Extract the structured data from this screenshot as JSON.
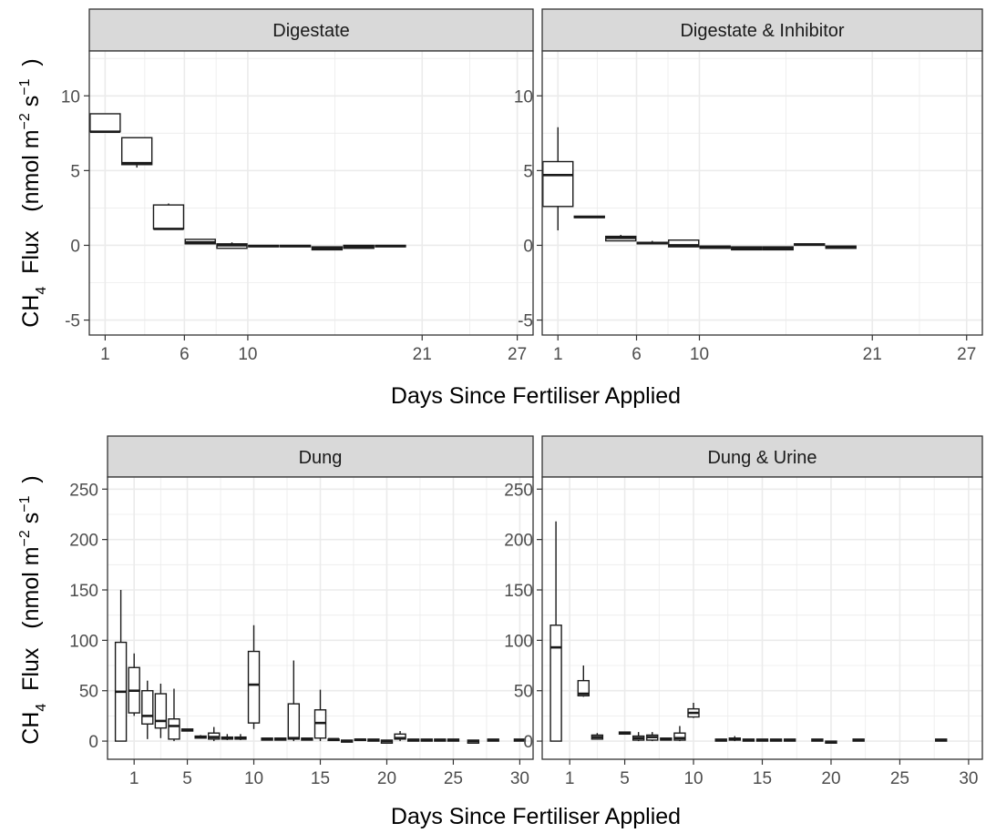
{
  "chart_data": [
    {
      "type": "boxplot",
      "panel": "top-left",
      "title": "Digestate",
      "xlabel": "Days Since Fertiliser Applied",
      "xlim": [
        0,
        28
      ],
      "x_ticks": [
        1,
        6,
        10,
        21,
        27
      ],
      "ylim": [
        -6,
        13
      ],
      "y_ticks": [
        -5,
        0,
        5,
        10
      ],
      "grid": true,
      "boxes": [
        {
          "x": 1,
          "lower_whisker": 7.6,
          "q1": 7.6,
          "median": 7.6,
          "q3": 8.8,
          "upper_whisker": 8.8
        },
        {
          "x": 3,
          "lower_whisker": 5.2,
          "q1": 5.4,
          "median": 5.5,
          "q3": 7.2,
          "upper_whisker": 7.2
        },
        {
          "x": 5,
          "lower_whisker": 1.1,
          "q1": 1.1,
          "median": 1.1,
          "q3": 2.7,
          "upper_whisker": 2.8
        },
        {
          "x": 7,
          "lower_whisker": 0.1,
          "q1": 0.1,
          "median": 0.2,
          "q3": 0.4,
          "upper_whisker": 0.4
        },
        {
          "x": 9,
          "lower_whisker": -0.2,
          "q1": -0.2,
          "median": 0.0,
          "q3": 0.1,
          "upper_whisker": 0.2
        },
        {
          "x": 11,
          "lower_whisker": -0.1,
          "q1": -0.1,
          "median": -0.05,
          "q3": 0.0,
          "upper_whisker": 0.0
        },
        {
          "x": 13,
          "lower_whisker": -0.1,
          "q1": -0.1,
          "median": -0.05,
          "q3": 0.0,
          "upper_whisker": 0.0
        },
        {
          "x": 15,
          "lower_whisker": -0.3,
          "q1": -0.3,
          "median": -0.2,
          "q3": -0.1,
          "upper_whisker": -0.1
        },
        {
          "x": 17,
          "lower_whisker": -0.2,
          "q1": -0.2,
          "median": -0.1,
          "q3": 0.0,
          "upper_whisker": 0.0
        },
        {
          "x": 19,
          "lower_whisker": -0.1,
          "q1": -0.1,
          "median": -0.05,
          "q3": 0.0,
          "upper_whisker": 0.0
        }
      ]
    },
    {
      "type": "boxplot",
      "panel": "top-right",
      "title": "Digestate & Inhibitor",
      "xlabel": "Days Since Fertiliser Applied",
      "xlim": [
        0,
        28
      ],
      "x_ticks": [
        1,
        6,
        10,
        21,
        27
      ],
      "ylim": [
        -6,
        13
      ],
      "y_ticks": [
        -5,
        0,
        5,
        10
      ],
      "grid": true,
      "boxes": [
        {
          "x": 1,
          "lower_whisker": 1.0,
          "q1": 2.6,
          "median": 4.7,
          "q3": 5.6,
          "upper_whisker": 7.9
        },
        {
          "x": 3,
          "lower_whisker": 1.85,
          "q1": 1.85,
          "median": 1.9,
          "q3": 1.95,
          "upper_whisker": 1.95
        },
        {
          "x": 5,
          "lower_whisker": 0.3,
          "q1": 0.3,
          "median": 0.5,
          "q3": 0.6,
          "upper_whisker": 0.7
        },
        {
          "x": 7,
          "lower_whisker": 0.1,
          "q1": 0.1,
          "median": 0.15,
          "q3": 0.2,
          "upper_whisker": 0.3
        },
        {
          "x": 9,
          "lower_whisker": -0.1,
          "q1": -0.1,
          "median": 0.0,
          "q3": 0.35,
          "upper_whisker": 0.35
        },
        {
          "x": 11,
          "lower_whisker": -0.2,
          "q1": -0.2,
          "median": -0.1,
          "q3": -0.05,
          "upper_whisker": -0.05
        },
        {
          "x": 13,
          "lower_whisker": -0.3,
          "q1": -0.3,
          "median": -0.2,
          "q3": -0.1,
          "upper_whisker": -0.1
        },
        {
          "x": 15,
          "lower_whisker": -0.3,
          "q1": -0.3,
          "median": -0.2,
          "q3": -0.1,
          "upper_whisker": -0.1
        },
        {
          "x": 17,
          "lower_whisker": 0.0,
          "q1": 0.0,
          "median": 0.05,
          "q3": 0.1,
          "upper_whisker": 0.1
        },
        {
          "x": 19,
          "lower_whisker": -0.2,
          "q1": -0.2,
          "median": -0.1,
          "q3": -0.05,
          "upper_whisker": -0.05
        }
      ]
    },
    {
      "type": "boxplot",
      "panel": "bottom-left",
      "title": "Dung",
      "xlabel": "Days Since Fertiliser Applied",
      "xlim": [
        -1,
        31
      ],
      "x_ticks": [
        1,
        5,
        10,
        15,
        20,
        25,
        30
      ],
      "ylim": [
        -18,
        262
      ],
      "y_ticks": [
        0,
        50,
        100,
        150,
        200,
        250
      ],
      "grid": true,
      "boxes": [
        {
          "x": 0,
          "lower_whisker": 0,
          "q1": 0,
          "median": 49,
          "q3": 98,
          "upper_whisker": 150
        },
        {
          "x": 1,
          "lower_whisker": 25,
          "q1": 28,
          "median": 50,
          "q3": 73,
          "upper_whisker": 87
        },
        {
          "x": 2,
          "lower_whisker": 2,
          "q1": 17,
          "median": 25,
          "q3": 50,
          "upper_whisker": 60
        },
        {
          "x": 3,
          "lower_whisker": 3,
          "q1": 13,
          "median": 20,
          "q3": 47,
          "upper_whisker": 57
        },
        {
          "x": 4,
          "lower_whisker": 0,
          "q1": 2,
          "median": 15,
          "q3": 22,
          "upper_whisker": 52
        },
        {
          "x": 5,
          "lower_whisker": 10,
          "q1": 10,
          "median": 11,
          "q3": 12,
          "upper_whisker": 12
        },
        {
          "x": 6,
          "lower_whisker": 3,
          "q1": 3,
          "median": 4,
          "q3": 5,
          "upper_whisker": 6
        },
        {
          "x": 7,
          "lower_whisker": 0,
          "q1": 2,
          "median": 4,
          "q3": 8,
          "upper_whisker": 14
        },
        {
          "x": 8,
          "lower_whisker": 1,
          "q1": 2,
          "median": 3,
          "q3": 4,
          "upper_whisker": 7
        },
        {
          "x": 9,
          "lower_whisker": 1,
          "q1": 2,
          "median": 3,
          "q3": 4,
          "upper_whisker": 7
        },
        {
          "x": 10,
          "lower_whisker": 12,
          "q1": 18,
          "median": 56,
          "q3": 89,
          "upper_whisker": 115
        },
        {
          "x": 11,
          "lower_whisker": 1,
          "q1": 1,
          "median": 2,
          "q3": 3,
          "upper_whisker": 3
        },
        {
          "x": 12,
          "lower_whisker": 1,
          "q1": 1,
          "median": 2,
          "q3": 3,
          "upper_whisker": 3
        },
        {
          "x": 13,
          "lower_whisker": 0,
          "q1": 2,
          "median": 3,
          "q3": 37,
          "upper_whisker": 80
        },
        {
          "x": 14,
          "lower_whisker": 1,
          "q1": 1,
          "median": 2,
          "q3": 3,
          "upper_whisker": 3
        },
        {
          "x": 15,
          "lower_whisker": 0,
          "q1": 3,
          "median": 18,
          "q3": 31,
          "upper_whisker": 51
        },
        {
          "x": 16,
          "lower_whisker": 1,
          "q1": 1,
          "median": 2,
          "q3": 2,
          "upper_whisker": 2
        },
        {
          "x": 17,
          "lower_whisker": -1,
          "q1": -1,
          "median": 0,
          "q3": 1,
          "upper_whisker": 1
        },
        {
          "x": 18,
          "lower_whisker": 1,
          "q1": 1,
          "median": 1.5,
          "q3": 2,
          "upper_whisker": 2
        },
        {
          "x": 19,
          "lower_whisker": 0,
          "q1": 0,
          "median": 1,
          "q3": 2,
          "upper_whisker": 2
        },
        {
          "x": 20,
          "lower_whisker": -2,
          "q1": -2,
          "median": 0,
          "q3": 1,
          "upper_whisker": 1
        },
        {
          "x": 21,
          "lower_whisker": 0,
          "q1": 2,
          "median": 3,
          "q3": 7,
          "upper_whisker": 10
        },
        {
          "x": 22,
          "lower_whisker": 0,
          "q1": 0,
          "median": 1,
          "q3": 2,
          "upper_whisker": 2
        },
        {
          "x": 23,
          "lower_whisker": 0,
          "q1": 0,
          "median": 1,
          "q3": 2,
          "upper_whisker": 2
        },
        {
          "x": 24,
          "lower_whisker": 0,
          "q1": 0,
          "median": 1,
          "q3": 2,
          "upper_whisker": 2
        },
        {
          "x": 25,
          "lower_whisker": 0,
          "q1": 0,
          "median": 1,
          "q3": 2,
          "upper_whisker": 2
        },
        {
          "x": 26.5,
          "lower_whisker": -2,
          "q1": -2,
          "median": 0,
          "q3": 1,
          "upper_whisker": 1
        },
        {
          "x": 28,
          "lower_whisker": 0,
          "q1": 0,
          "median": 1,
          "q3": 2,
          "upper_whisker": 2
        },
        {
          "x": 30,
          "lower_whisker": 0,
          "q1": 0,
          "median": 1,
          "q3": 2,
          "upper_whisker": 2
        }
      ]
    },
    {
      "type": "boxplot",
      "panel": "bottom-right",
      "title": "Dung & Urine",
      "xlabel": "Days Since Fertiliser Applied",
      "xlim": [
        -1,
        31
      ],
      "x_ticks": [
        1,
        5,
        10,
        15,
        20,
        25,
        30
      ],
      "ylim": [
        -18,
        262
      ],
      "y_ticks": [
        0,
        50,
        100,
        150,
        200,
        250
      ],
      "grid": true,
      "boxes": [
        {
          "x": 0,
          "lower_whisker": 0,
          "q1": 0,
          "median": 93,
          "q3": 115,
          "upper_whisker": 218
        },
        {
          "x": 2,
          "lower_whisker": 44,
          "q1": 45,
          "median": 47,
          "q3": 60,
          "upper_whisker": 75
        },
        {
          "x": 3,
          "lower_whisker": 2,
          "q1": 2,
          "median": 4,
          "q3": 6,
          "upper_whisker": 8
        },
        {
          "x": 5,
          "lower_whisker": 7,
          "q1": 7,
          "median": 8,
          "q3": 9,
          "upper_whisker": 9
        },
        {
          "x": 6,
          "lower_whisker": 0,
          "q1": 1,
          "median": 3,
          "q3": 5,
          "upper_whisker": 9
        },
        {
          "x": 7,
          "lower_whisker": 0,
          "q1": 1,
          "median": 4,
          "q3": 6,
          "upper_whisker": 9
        },
        {
          "x": 8,
          "lower_whisker": 1,
          "q1": 1,
          "median": 2,
          "q3": 3,
          "upper_whisker": 3
        },
        {
          "x": 9,
          "lower_whisker": 0,
          "q1": 1,
          "median": 3,
          "q3": 8,
          "upper_whisker": 15
        },
        {
          "x": 10,
          "lower_whisker": 23,
          "q1": 24,
          "median": 28,
          "q3": 32,
          "upper_whisker": 38
        },
        {
          "x": 12,
          "lower_whisker": 0,
          "q1": 0,
          "median": 1,
          "q3": 2,
          "upper_whisker": 2
        },
        {
          "x": 13,
          "lower_whisker": 0,
          "q1": 1,
          "median": 2,
          "q3": 3,
          "upper_whisker": 5
        },
        {
          "x": 14,
          "lower_whisker": 0,
          "q1": 0,
          "median": 1,
          "q3": 2,
          "upper_whisker": 2
        },
        {
          "x": 15,
          "lower_whisker": 0,
          "q1": 0,
          "median": 1,
          "q3": 2,
          "upper_whisker": 2
        },
        {
          "x": 16,
          "lower_whisker": 0,
          "q1": 0,
          "median": 1,
          "q3": 2,
          "upper_whisker": 2
        },
        {
          "x": 17,
          "lower_whisker": 0,
          "q1": 0,
          "median": 1,
          "q3": 2,
          "upper_whisker": 2
        },
        {
          "x": 19,
          "lower_whisker": 0,
          "q1": 0,
          "median": 1,
          "q3": 2,
          "upper_whisker": 2
        },
        {
          "x": 20,
          "lower_whisker": -2,
          "q1": -2,
          "median": -1,
          "q3": 0,
          "upper_whisker": 0
        },
        {
          "x": 22,
          "lower_whisker": 0,
          "q1": 0,
          "median": 1,
          "q3": 2,
          "upper_whisker": 2
        },
        {
          "x": 28,
          "lower_whisker": 0,
          "q1": 0,
          "median": 1,
          "q3": 2,
          "upper_whisker": 2
        }
      ]
    }
  ],
  "y_axis_label": {
    "ch": "CH",
    "sub4": "4",
    "flux": "Flux",
    "open": "(nmol m",
    "exp_m": "−2",
    "s": "s",
    "exp_s": "−1",
    "close": ")"
  },
  "colors": {
    "strip_fill": "#d9d9d9",
    "grid": "#ebebeb",
    "panel_border": "#333333",
    "box_stroke": "#1a1a1a",
    "box_fill": "#ffffff"
  }
}
